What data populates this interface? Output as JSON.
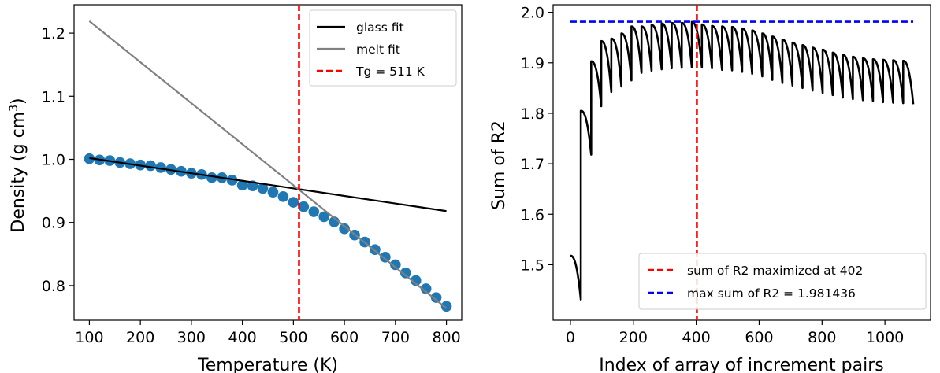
{
  "chart_data": [
    {
      "type": "scatter",
      "xlabel": "Temperature (K)",
      "ylabel_main": "Density (g cm",
      "ylabel_sup": "3",
      "ylabel_close": ")",
      "xlim": [
        70,
        830
      ],
      "ylim": [
        0.745,
        1.245
      ],
      "xticks": [
        100,
        200,
        300,
        400,
        500,
        600,
        700,
        800
      ],
      "yticks": [
        0.8,
        0.9,
        1.0,
        1.1,
        1.2
      ],
      "ytick_labels": [
        "0.8",
        "0.9",
        "1.0",
        "1.1",
        "1.2"
      ],
      "scatter": {
        "color": "#1f77b4",
        "x": [
          100,
          120,
          140,
          160,
          180,
          200,
          220,
          240,
          260,
          280,
          300,
          320,
          340,
          360,
          380,
          400,
          420,
          440,
          460,
          480,
          500,
          520,
          540,
          560,
          580,
          600,
          620,
          640,
          660,
          680,
          700,
          720,
          740,
          760,
          780,
          800
        ],
        "y": [
          1.001,
          0.999,
          0.998,
          0.995,
          0.993,
          0.991,
          0.99,
          0.987,
          0.984,
          0.981,
          0.978,
          0.976,
          0.971,
          0.971,
          0.967,
          0.959,
          0.958,
          0.954,
          0.948,
          0.941,
          0.932,
          0.925,
          0.917,
          0.909,
          0.901,
          0.89,
          0.88,
          0.869,
          0.857,
          0.845,
          0.833,
          0.82,
          0.808,
          0.795,
          0.781,
          0.767
        ]
      },
      "lines": [
        {
          "name": "glass fit",
          "color": "#000000",
          "x": [
            100,
            800
          ],
          "y": [
            1.002,
            0.918
          ]
        },
        {
          "name": "melt fit",
          "color": "#808080",
          "x": [
            100,
            800
          ],
          "y": [
            1.219,
            0.764
          ]
        }
      ],
      "vline": {
        "name": "Tg =  511 K",
        "x": 511,
        "color": "#ff0000"
      },
      "legend": {
        "loc": "upper right",
        "entries": [
          "glass fit",
          "melt fit",
          "Tg =  511 K"
        ]
      }
    },
    {
      "type": "line",
      "xlabel": "Index of array of increment pairs",
      "ylabel": "Sum of R2",
      "xlim": [
        -55,
        1145
      ],
      "ylim": [
        1.39,
        2.015
      ],
      "xticks": [
        0,
        200,
        400,
        600,
        800,
        1000
      ],
      "yticks": [
        1.5,
        1.6,
        1.7,
        1.8,
        1.9,
        2.0
      ],
      "ytick_labels": [
        "1.5",
        "1.6",
        "1.7",
        "1.8",
        "1.9",
        "2.0"
      ],
      "series": {
        "color": "#000000",
        "segments": [
          {
            "x": [
              0,
              33
            ],
            "y": [
              1.518,
              1.431
            ]
          },
          {
            "x": [
              33,
              66
            ],
            "y": [
              1.805,
              1.718
            ]
          },
          {
            "x": [
              66,
              98
            ],
            "y": [
              1.903,
              1.814
            ]
          },
          {
            "x": [
              98,
              130
            ],
            "y": [
              1.943,
              1.842
            ]
          },
          {
            "x": [
              130,
              162
            ],
            "y": [
              1.948,
              1.853
            ]
          },
          {
            "x": [
              162,
              194
            ],
            "y": [
              1.958,
              1.865
            ]
          },
          {
            "x": [
              194,
              226
            ],
            "y": [
              1.972,
              1.88
            ]
          },
          {
            "x": [
              226,
              258
            ],
            "y": [
              1.972,
              1.884
            ]
          },
          {
            "x": [
              258,
              290
            ],
            "y": [
              1.975,
              1.887
            ]
          },
          {
            "x": [
              290,
              322
            ],
            "y": [
              1.978,
              1.889
            ]
          },
          {
            "x": [
              322,
              354
            ],
            "y": [
              1.979,
              1.89
            ]
          },
          {
            "x": [
              354,
              386
            ],
            "y": [
              1.979,
              1.891
            ]
          },
          {
            "x": [
              386,
              418
            ],
            "y": [
              1.981,
              1.891
            ]
          },
          {
            "x": [
              418,
              450
            ],
            "y": [
              1.976,
              1.889
            ]
          },
          {
            "x": [
              450,
              482
            ],
            "y": [
              1.973,
              1.886
            ]
          },
          {
            "x": [
              482,
              514
            ],
            "y": [
              1.972,
              1.885
            ]
          },
          {
            "x": [
              514,
              546
            ],
            "y": [
              1.971,
              1.882
            ]
          },
          {
            "x": [
              546,
              578
            ],
            "y": [
              1.968,
              1.878
            ]
          },
          {
            "x": [
              578,
              610
            ],
            "y": [
              1.964,
              1.873
            ]
          },
          {
            "x": [
              610,
              642
            ],
            "y": [
              1.958,
              1.866
            ]
          },
          {
            "x": [
              642,
              674
            ],
            "y": [
              1.952,
              1.86
            ]
          },
          {
            "x": [
              674,
              706
            ],
            "y": [
              1.946,
              1.855
            ]
          },
          {
            "x": [
              706,
              738
            ],
            "y": [
              1.94,
              1.85
            ]
          },
          {
            "x": [
              738,
              770
            ],
            "y": [
              1.935,
              1.845
            ]
          },
          {
            "x": [
              770,
              802
            ],
            "y": [
              1.93,
              1.84
            ]
          },
          {
            "x": [
              802,
              834
            ],
            "y": [
              1.926,
              1.836
            ]
          },
          {
            "x": [
              834,
              866
            ],
            "y": [
              1.92,
              1.831
            ]
          },
          {
            "x": [
              866,
              898
            ],
            "y": [
              1.916,
              1.828
            ]
          },
          {
            "x": [
              898,
              930
            ],
            "y": [
              1.912,
              1.826
            ]
          },
          {
            "x": [
              930,
              962
            ],
            "y": [
              1.909,
              1.824
            ]
          },
          {
            "x": [
              962,
              994
            ],
            "y": [
              1.907,
              1.822
            ]
          },
          {
            "x": [
              994,
              1026
            ],
            "y": [
              1.906,
              1.821
            ]
          },
          {
            "x": [
              1026,
              1058
            ],
            "y": [
              1.905,
              1.82
            ]
          },
          {
            "x": [
              1058,
              1090
            ],
            "y": [
              1.904,
              1.818
            ]
          }
        ]
      },
      "vline": {
        "name": "sum of R2 maximized at 402",
        "x": 402,
        "color": "#ff0000"
      },
      "hline": {
        "name": "max sum of R2 = 1.981436",
        "y": 1.981436,
        "color": "#0000ff"
      },
      "legend": {
        "loc": "lower right",
        "entries": [
          "sum of R2 maximized at 402",
          "max sum of R2 = 1.981436"
        ]
      }
    }
  ]
}
